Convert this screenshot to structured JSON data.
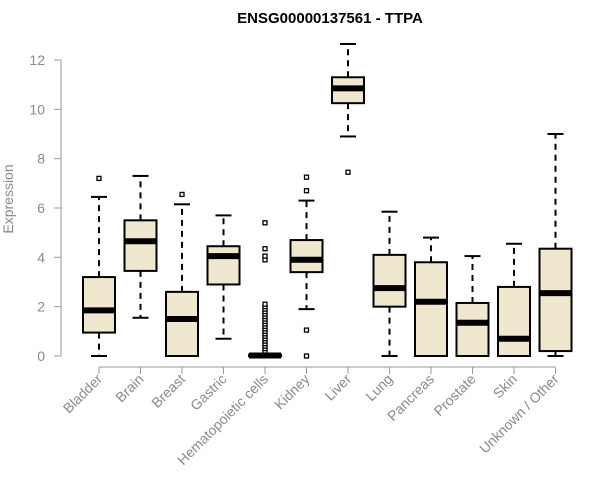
{
  "chart_data": {
    "type": "box",
    "title": "ENSG00000137561 - TTPA",
    "xlabel": "",
    "ylabel": "Expression",
    "ylim": [
      0,
      12.5
    ],
    "yticks": [
      0,
      2,
      4,
      6,
      8,
      10,
      12
    ],
    "grid": false,
    "box_fill": "#efe8cf",
    "categories": [
      "Bladder",
      "Brain",
      "Breast",
      "Gastric",
      "Hematopoietic cells",
      "Kidney",
      "Liver",
      "Lung",
      "Pancreas",
      "Prostate",
      "Skin",
      "Unknown / Other"
    ],
    "boxes": [
      {
        "whisker_low": 0.0,
        "q1": 0.95,
        "median": 1.85,
        "q3": 3.2,
        "whisker_high": 6.45,
        "outliers": [
          7.2
        ]
      },
      {
        "whisker_low": 1.55,
        "q1": 3.45,
        "median": 4.65,
        "q3": 5.5,
        "whisker_high": 7.3,
        "outliers": []
      },
      {
        "whisker_low": 0.0,
        "q1": 0.0,
        "median": 1.5,
        "q3": 2.6,
        "whisker_high": 6.15,
        "outliers": [
          6.55
        ]
      },
      {
        "whisker_low": 0.7,
        "q1": 2.9,
        "median": 4.05,
        "q3": 4.45,
        "whisker_high": 5.7,
        "outliers": []
      },
      {
        "whisker_low": 0.0,
        "q1": 0.0,
        "median": 0.02,
        "q3": 0.05,
        "whisker_high": 0.1,
        "outliers": [
          0.2,
          0.3,
          0.4,
          0.5,
          0.6,
          0.7,
          0.8,
          0.9,
          1.0,
          1.1,
          1.2,
          1.3,
          1.4,
          1.5,
          1.6,
          1.7,
          1.8,
          1.9,
          2.0,
          2.1,
          3.9,
          4.05,
          4.35,
          5.4
        ]
      },
      {
        "whisker_low": 1.9,
        "q1": 3.4,
        "median": 3.9,
        "q3": 4.7,
        "whisker_high": 6.3,
        "outliers": [
          0.0,
          1.05,
          6.7,
          7.25
        ]
      },
      {
        "whisker_low": 8.9,
        "q1": 10.25,
        "median": 10.85,
        "q3": 11.3,
        "whisker_high": 12.65,
        "outliers": [
          7.45
        ]
      },
      {
        "whisker_low": 0.0,
        "q1": 2.0,
        "median": 2.75,
        "q3": 4.1,
        "whisker_high": 5.85,
        "outliers": []
      },
      {
        "whisker_low": 0.0,
        "q1": 0.0,
        "median": 2.2,
        "q3": 3.8,
        "whisker_high": 4.8,
        "outliers": []
      },
      {
        "whisker_low": 0.0,
        "q1": 0.0,
        "median": 1.35,
        "q3": 2.15,
        "whisker_high": 4.05,
        "outliers": []
      },
      {
        "whisker_low": 0.0,
        "q1": 0.0,
        "median": 0.7,
        "q3": 2.8,
        "whisker_high": 4.55,
        "outliers": []
      },
      {
        "whisker_low": 0.0,
        "q1": 0.2,
        "median": 2.55,
        "q3": 4.35,
        "whisker_high": 9.0,
        "outliers": []
      }
    ]
  }
}
